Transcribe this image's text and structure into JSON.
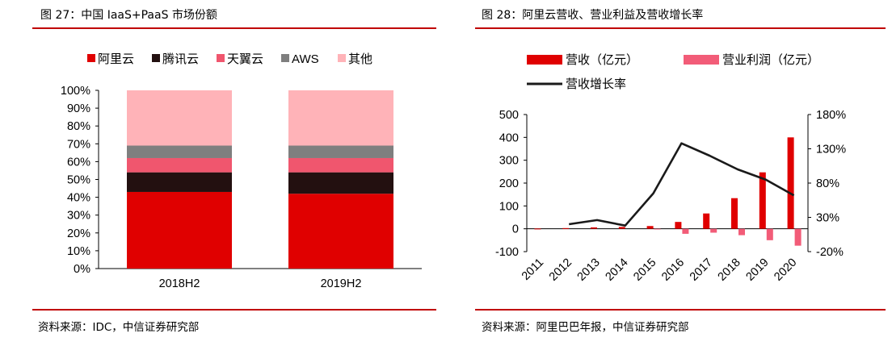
{
  "left": {
    "title": "图 27：中国 IaaS+PaaS 市场份额",
    "source": "资料来源：IDC，中信证券研究部"
  },
  "right": {
    "title": "图 28：阿里云营收、营业利益及营收增长率",
    "source": "资料来源：阿里巴巴年报，中信证券研究部"
  },
  "colors": {
    "rule": "#c00000",
    "ali": "#e00000",
    "tencent": "#231010",
    "tianyi": "#f0566e",
    "aws": "#7f7f7f",
    "other": "#ffb3b8",
    "revenue": "#e00000",
    "profit": "#f25c78",
    "growth": "#1a1a1a"
  },
  "chart_data": [
    {
      "type": "bar",
      "stacked": true,
      "categories": [
        "2018H2",
        "2019H2"
      ],
      "series": [
        {
          "name": "阿里云",
          "color_key": "ali",
          "values": [
            43,
            42
          ]
        },
        {
          "name": "腾讯云",
          "color_key": "tencent",
          "values": [
            11,
            12
          ]
        },
        {
          "name": "天翼云",
          "color_key": "tianyi",
          "values": [
            8,
            8
          ]
        },
        {
          "name": "AWS",
          "color_key": "aws",
          "values": [
            7,
            7
          ]
        },
        {
          "name": "其他",
          "color_key": "other",
          "values": [
            31,
            31
          ]
        }
      ],
      "yticks": [
        "0%",
        "10%",
        "20%",
        "30%",
        "40%",
        "50%",
        "60%",
        "70%",
        "80%",
        "90%",
        "100%"
      ],
      "ylim": [
        0,
        100
      ],
      "legend": "top"
    },
    {
      "type": "bar",
      "categories": [
        "2011",
        "2012",
        "2013",
        "2014",
        "2015",
        "2016",
        "2017",
        "2018",
        "2019",
        "2020"
      ],
      "series": [
        {
          "name": "营收（亿元）",
          "color_key": "revenue",
          "axis": "left",
          "values": [
            1,
            3,
            6,
            8,
            12,
            30,
            67,
            134,
            247,
            400
          ]
        },
        {
          "name": "营业利润（亿元）",
          "color_key": "profit",
          "axis": "left",
          "values": [
            0,
            0,
            0,
            0,
            -3,
            -22,
            -17,
            -28,
            -50,
            -74
          ]
        },
        {
          "name": "营收增长率",
          "color_key": "growth",
          "axis": "right",
          "type": "line",
          "values": [
            null,
            20,
            26,
            18,
            65,
            138,
            120,
            100,
            85,
            62
          ]
        }
      ],
      "left_ylim": [
        -100,
        500
      ],
      "left_yticks": [
        "-100",
        "0",
        "100",
        "200",
        "300",
        "400",
        "500"
      ],
      "right_ylim": [
        -20,
        180
      ],
      "right_yticks": [
        "-20%",
        "30%",
        "80%",
        "130%",
        "180%"
      ],
      "legend": "top-left"
    }
  ]
}
